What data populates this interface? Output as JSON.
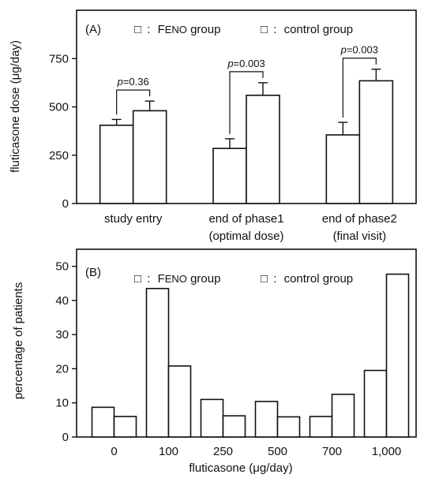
{
  "chart_data": [
    {
      "type": "bar",
      "panel_label": "(A)",
      "legend": [
        {
          "symbol": "□",
          "sep": ":",
          "name": "F",
          "sub": "ENO",
          "suffix": " group"
        },
        {
          "symbol": "□",
          "sep": ":",
          "name": "control group",
          "sub": "",
          "suffix": ""
        }
      ],
      "ylabel": "fluticasone dose (μg/day)",
      "ylim": [
        0,
        1000
      ],
      "yticks": [
        0,
        250,
        500,
        750
      ],
      "categories": [
        [
          "study entry"
        ],
        [
          "end of phase1",
          "(optimal dose)"
        ],
        [
          "end of phase2",
          "(final visit)"
        ]
      ],
      "series": [
        {
          "name": "FENO group",
          "values": [
            405,
            285,
            355
          ],
          "errors": [
            30,
            50,
            65
          ]
        },
        {
          "name": "control group",
          "values": [
            480,
            560,
            635
          ],
          "errors": [
            50,
            65,
            60
          ]
        }
      ],
      "annotations": [
        "p=0.36",
        "p=0.003",
        "p=0.003"
      ]
    },
    {
      "type": "bar",
      "panel_label": "(B)",
      "legend": [
        {
          "symbol": "□",
          "sep": ":",
          "name": "F",
          "sub": "ENO",
          "suffix": " group"
        },
        {
          "symbol": "□",
          "sep": ":",
          "name": "control group",
          "sub": "",
          "suffix": ""
        }
      ],
      "ylabel": "percentage of patients",
      "xlabel": "fluticasone (μg/day)",
      "ylim": [
        0,
        55
      ],
      "yticks": [
        0,
        10,
        20,
        30,
        40,
        50
      ],
      "categories": [
        "0",
        "100",
        "250",
        "500",
        "700",
        "1,000"
      ],
      "series": [
        {
          "name": "FENO group",
          "values": [
            8.7,
            43.5,
            11,
            10.4,
            6,
            19.5
          ]
        },
        {
          "name": "control group",
          "values": [
            6,
            20.8,
            6.2,
            5.9,
            12.5,
            47.7
          ]
        }
      ]
    }
  ]
}
